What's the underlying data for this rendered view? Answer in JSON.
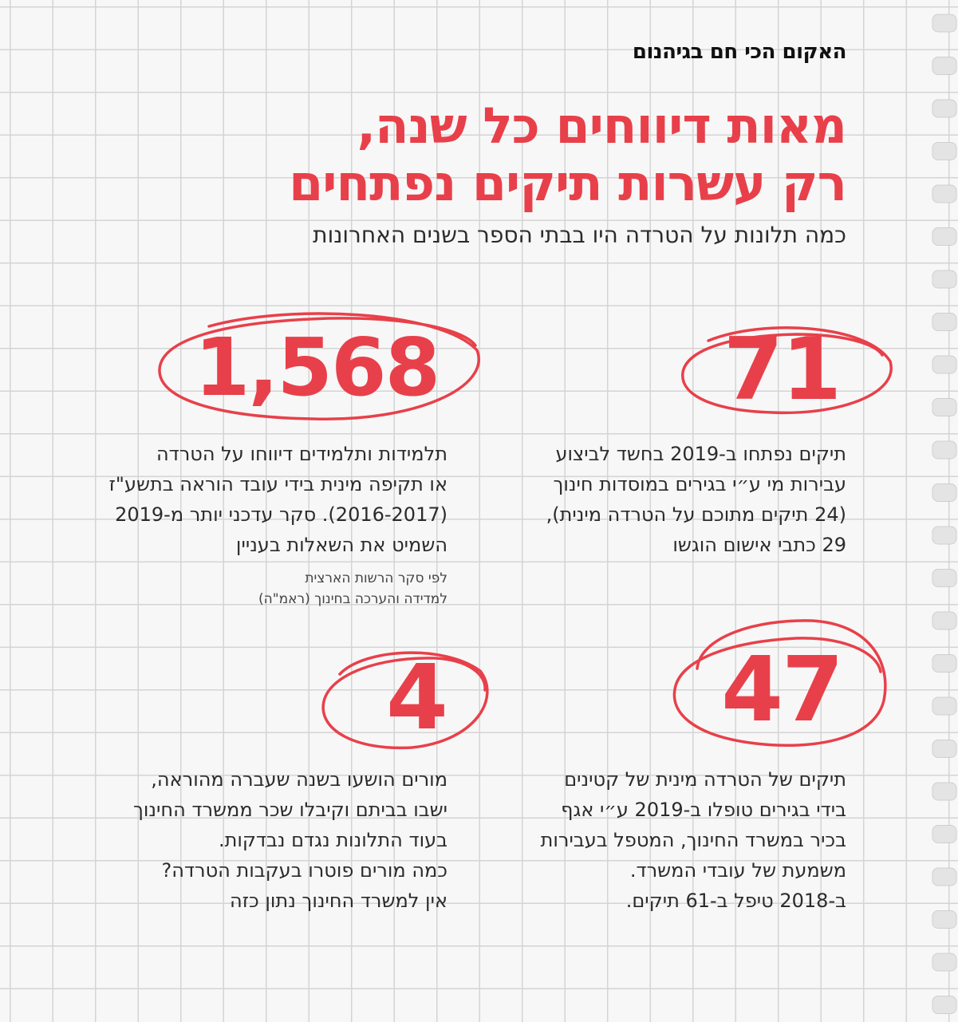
{
  "kicker": "האקום הכי חם בגיהנום",
  "headline": {
    "line1": "מאות דיווחים כל שנה,",
    "line2": "רק עשרות תיקים נפתחים"
  },
  "subhead": "כמה תלונות על הטרדה היו בבתי הספר בשנים האחרונות",
  "stats": [
    {
      "number": "71",
      "lines": [
        "תיקים נפתחו ב-2019 בחשד לביצוע",
        "עבירות מי ע״י בגירים במוסדות חינוך",
        "(24 תיקים מתוכם על הטרדה מינית),",
        "29 כתבי אישום הוגשו"
      ]
    },
    {
      "number": "1,568",
      "lines": [
        "תלמידות ותלמידים דיווחו על הטרדה",
        "או תקיפה מינית בידי עובד הוראה בתשע\"ז",
        "(2016-2017). סקר עדכני יותר מ-2019",
        "השמיט את השאלות בעניין"
      ],
      "source": [
        "לפי סקר הרשות הארצית",
        "למדידה והערכה בחינוך (ראמ\"ה)"
      ]
    },
    {
      "number": "47",
      "lines": [
        "תיקים של הטרדה מינית של קטינים",
        "בידי בגירים טופלו ב-2019 ע״י אגף",
        "בכיר במשרד החינוך, המטפל בעבירות",
        "משמעת של עובדי המשרד.",
        "ב-2018 טיפל ב-61 תיקים."
      ]
    },
    {
      "number": "4",
      "lines": [
        "מורים הושעו בשנה שעברה מהוראה,",
        "ישבו בביתם וקיבלו שכר ממשרד החינוך",
        "בעוד התלונות נגדם נבדקות.",
        "כמה מורים פוטרו בעקבות הטרדה?",
        "אין למשרד החינוך נתון כזה"
      ]
    }
  ],
  "colors": {
    "accent": "#e8404a",
    "text": "#2b2b2b",
    "grid": "#d4d4d4",
    "paper": "#f7f7f7"
  }
}
